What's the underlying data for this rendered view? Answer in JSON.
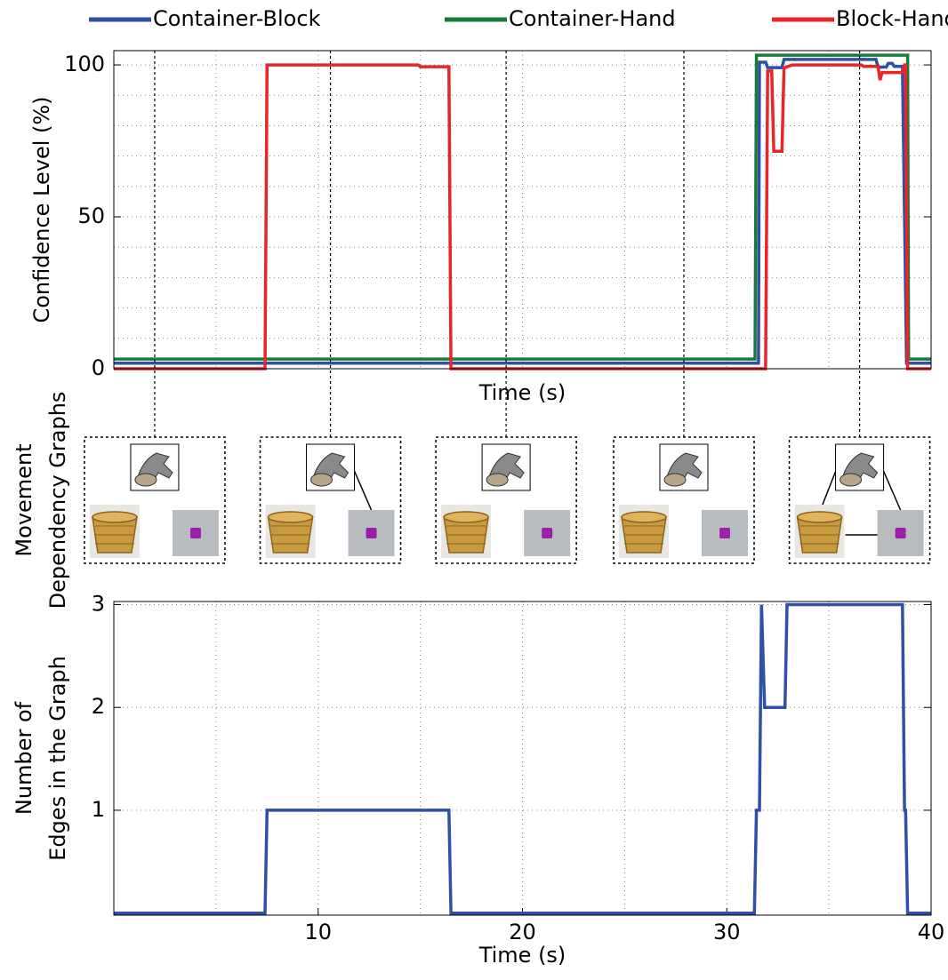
{
  "chart_data": [
    {
      "type": "line",
      "ylabel": "Confidence Level (%)",
      "xlabel": "Time (s)",
      "xlim": [
        0,
        40
      ],
      "ylim": [
        0,
        104.7
      ],
      "yticks": [
        0,
        50,
        100
      ],
      "x_grid": [
        5,
        10,
        15,
        20,
        25,
        30,
        35
      ],
      "y_grid": [
        10,
        20,
        30,
        40,
        50,
        60,
        70,
        80,
        90,
        100
      ],
      "grid": true,
      "legend": "top",
      "snapshot_times": [
        2.0,
        10.6,
        19.2,
        27.9,
        36.5
      ],
      "series": [
        {
          "name": "Container-Block",
          "color": "#2e4fa3",
          "x": [
            0,
            31.55,
            31.6,
            31.9,
            32.0,
            32.7,
            32.8,
            37.3,
            37.4,
            37.8,
            37.9,
            38.1,
            38.2,
            38.6,
            38.8,
            40
          ],
          "values": [
            1.8,
            1.8,
            100.9,
            100.9,
            99.1,
            99.1,
            101.8,
            101.8,
            99.3,
            99.3,
            100.5,
            100.5,
            99.5,
            99.5,
            1.8,
            1.8
          ]
        },
        {
          "name": "Container-Hand",
          "color": "#1a7a3c",
          "x": [
            0,
            31.38,
            31.45,
            38.85,
            38.9,
            40
          ],
          "values": [
            3.2,
            3.2,
            103.2,
            103.2,
            3.2,
            3.2
          ]
        },
        {
          "name": "Block-Hand",
          "color": "#e8252b",
          "x": [
            0,
            7.4,
            7.5,
            14.9,
            15.0,
            16.4,
            16.5,
            31.9,
            32.0,
            32.2,
            32.3,
            32.7,
            32.8,
            33.2,
            36.6,
            36.7,
            37.4,
            37.5,
            37.6,
            38.6,
            38.7,
            38.75,
            38.85,
            40
          ],
          "values": [
            0,
            0,
            100,
            100,
            99.4,
            99.4,
            0,
            0,
            98,
            98,
            71.6,
            71.6,
            99,
            100,
            100,
            99.5,
            99.5,
            95,
            97.5,
            97.5,
            100,
            100,
            0,
            0
          ]
        }
      ]
    },
    {
      "type": "line",
      "ylabel": [
        "Number of",
        "Edges in the Graph"
      ],
      "xlabel": "Time (s)",
      "xlim": [
        0,
        40
      ],
      "ylim": [
        -0.02,
        3.03
      ],
      "yticks": [
        1,
        2,
        3
      ],
      "xticks": [
        10,
        20,
        30,
        40
      ],
      "x_grid": [
        5,
        10,
        15,
        20,
        25,
        30,
        35
      ],
      "y_grid": [
        1,
        2,
        3
      ],
      "grid": true,
      "series": [
        {
          "color": "#3050a8",
          "x": [
            0,
            7.4,
            7.5,
            16.4,
            16.5,
            31.35,
            31.45,
            31.6,
            31.7,
            31.85,
            31.95,
            32.85,
            32.95,
            38.6,
            38.7,
            38.75,
            38.85,
            40
          ],
          "values": [
            0,
            0,
            1,
            1,
            0,
            0,
            1,
            1,
            3,
            2,
            2,
            2,
            3,
            3,
            1,
            1,
            0,
            0
          ]
        }
      ]
    }
  ],
  "graphs_panel": {
    "ylabel": [
      "Movement",
      "Dependency Graphs"
    ]
  }
}
